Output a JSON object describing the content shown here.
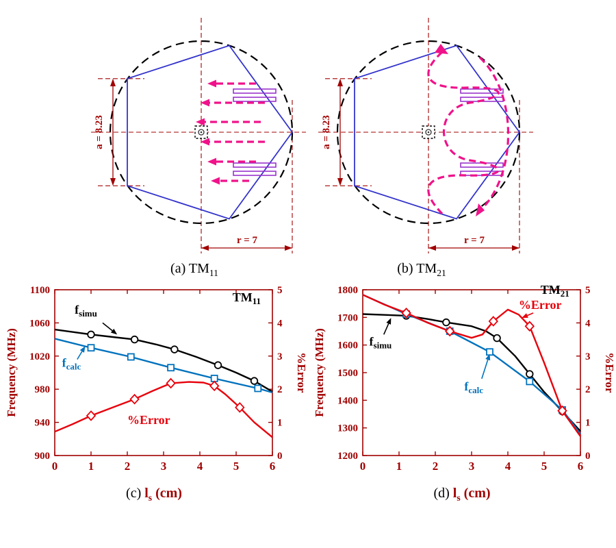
{
  "colors": {
    "axis": "#A00000",
    "patch": "#3333CC",
    "field": "#F0128A",
    "probe": "#9933CC",
    "circle": "#000000",
    "simu": "#000000",
    "calc": "#0072BD",
    "error": "#E8000B"
  },
  "diagrams": [
    {
      "caption_prefix": "(a)",
      "mode_label": "TM",
      "mode_sub": "11",
      "dim_a_label": "a = 8.23",
      "dim_r_label": "r = 7"
    },
    {
      "caption_prefix": "(b)",
      "mode_label": "TM",
      "mode_sub": "21",
      "dim_a_label": "a = 8.23",
      "dim_r_label": "r = 7"
    }
  ],
  "chart_data": [
    {
      "id": "c",
      "type": "line",
      "panel_caption": "(c)",
      "xlabel_main": "l",
      "xlabel_sub": "s",
      "xlabel_unit": "(cm)",
      "title_main": "TM",
      "title_sub": "11",
      "ylabel_left": "Frequency (MHz)",
      "ylabel_right": "%Error",
      "xlim": [
        0,
        6
      ],
      "ylim_left": [
        900,
        1100
      ],
      "ylim_right": [
        0,
        5
      ],
      "xticks": [
        0,
        1,
        2,
        3,
        4,
        5,
        6
      ],
      "yticks_left": [
        900,
        940,
        980,
        1020,
        1060,
        1100
      ],
      "yticks_right": [
        0,
        1,
        2,
        3,
        4,
        5
      ],
      "grid": false,
      "legend_position": "annotations",
      "series": [
        {
          "name_main": "f",
          "name_sub": "simu",
          "axis": "left",
          "color": "#000000",
          "marker": "circle",
          "x": [
            0,
            0.5,
            1,
            1.6,
            2.2,
            2.8,
            3.3,
            3.9,
            4.5,
            5,
            5.5,
            6
          ],
          "y": [
            1052,
            1049,
            1046,
            1043,
            1040,
            1034,
            1028,
            1019,
            1009,
            1000,
            990,
            977
          ],
          "marker_idx": [
            2,
            4,
            6,
            8,
            10
          ]
        },
        {
          "name_main": "f",
          "name_sub": "calc",
          "axis": "left",
          "color": "#0072BD",
          "marker": "square",
          "x": [
            0,
            1,
            2.1,
            3.2,
            4.4,
            5.6,
            6
          ],
          "y": [
            1041,
            1030,
            1019,
            1006,
            993,
            981,
            976
          ],
          "marker_idx": [
            1,
            2,
            3,
            4,
            5
          ]
        },
        {
          "name_main": "%Error",
          "name_sub": "",
          "axis": "right",
          "color": "#E8000B",
          "marker": "diamond",
          "x": [
            0,
            0.5,
            1,
            1.6,
            2.2,
            2.7,
            3.2,
            3.7,
            4.1,
            4.4,
            4.7,
            5.1,
            5.5,
            6
          ],
          "y": [
            0.72,
            0.95,
            1.2,
            1.45,
            1.7,
            1.95,
            2.18,
            2.22,
            2.2,
            2.1,
            1.85,
            1.45,
            1.0,
            0.55
          ],
          "marker_idx": [
            2,
            4,
            6,
            9,
            11
          ]
        }
      ],
      "annotations": [
        {
          "name": "f-simu-label",
          "text_main": "f",
          "text_sub": "simu",
          "color": "#000000",
          "x": 0.55,
          "y": 1071,
          "arrow_from": [
            1.32,
            1060
          ],
          "arrow_to": [
            1.72,
            1046
          ]
        },
        {
          "name": "f-calc-label",
          "text_main": "f",
          "text_sub": "calc",
          "color": "#0072BD",
          "x": 0.2,
          "y": 1007,
          "arrow_from": [
            0.62,
            1016
          ],
          "arrow_to": [
            0.84,
            1032
          ]
        },
        {
          "name": "error-label",
          "text_main": "%Error",
          "text_sub": "",
          "color": "#E8000B",
          "x": 2.0,
          "y": 938
        },
        {
          "name": "mode-title",
          "text_main": "TM",
          "text_sub": "11",
          "color": "#000000",
          "x": 4.9,
          "y": 1086
        }
      ]
    },
    {
      "id": "d",
      "type": "line",
      "panel_caption": "(d)",
      "xlabel_main": "l",
      "xlabel_sub": "s",
      "xlabel_unit": "(cm)",
      "title_main": "TM",
      "title_sub": "21",
      "ylabel_left": "Frequency (MHz)",
      "ylabel_right": "%Error",
      "xlim": [
        0,
        6
      ],
      "ylim_left": [
        1200,
        1800
      ],
      "ylim_right": [
        0,
        5
      ],
      "xticks": [
        0,
        1,
        2,
        3,
        4,
        5,
        6
      ],
      "yticks_left": [
        1200,
        1300,
        1400,
        1500,
        1600,
        1700,
        1800
      ],
      "yticks_right": [
        0,
        1,
        2,
        3,
        4,
        5
      ],
      "grid": false,
      "legend_position": "annotations",
      "series": [
        {
          "name_main": "f",
          "name_sub": "simu",
          "axis": "left",
          "color": "#000000",
          "marker": "circle",
          "x": [
            0,
            0.6,
            1.2,
            1.8,
            2.3,
            3,
            3.4,
            3.7,
            4.2,
            4.6,
            5,
            5.5,
            6
          ],
          "y": [
            1712,
            1709,
            1706,
            1694,
            1682,
            1668,
            1650,
            1625,
            1560,
            1495,
            1430,
            1360,
            1288
          ],
          "marker_idx": [
            2,
            4,
            7,
            9,
            11
          ]
        },
        {
          "name_main": "f",
          "name_sub": "calc",
          "axis": "left",
          "color": "#0072BD",
          "marker": "square",
          "x": [
            0,
            1.2,
            2.4,
            3.5,
            4.6,
            5.5,
            6
          ],
          "y": [
            1782,
            1712,
            1650,
            1575,
            1468,
            1365,
            1278
          ],
          "marker_idx": [
            1,
            2,
            3,
            4,
            5
          ]
        },
        {
          "name_main": "%Error",
          "name_sub": "",
          "axis": "right",
          "color": "#E8000B",
          "marker": "diamond",
          "x": [
            0,
            0.6,
            1.2,
            1.8,
            2.4,
            3,
            3.3,
            3.6,
            4,
            4.3,
            4.6,
            5,
            5.5,
            6
          ],
          "y": [
            4.85,
            4.55,
            4.3,
            4.0,
            3.75,
            3.55,
            3.65,
            4.05,
            4.4,
            4.25,
            3.9,
            2.8,
            1.35,
            0.58
          ],
          "marker_idx": [
            2,
            4,
            7,
            10,
            12
          ]
        }
      ],
      "annotations": [
        {
          "name": "f-simu-label",
          "text_main": "f",
          "text_sub": "simu",
          "color": "#000000",
          "x": 0.18,
          "y": 1598,
          "arrow_from": [
            0.58,
            1638
          ],
          "arrow_to": [
            0.78,
            1698
          ]
        },
        {
          "name": "f-calc-label",
          "text_main": "f",
          "text_sub": "calc",
          "color": "#0072BD",
          "x": 2.8,
          "y": 1436,
          "arrow_from": [
            3.28,
            1478
          ],
          "arrow_to": [
            3.5,
            1568
          ]
        },
        {
          "name": "error-label",
          "text_main": "%Error",
          "text_sub": "",
          "color": "#E8000B",
          "x": 4.3,
          "y": 1730,
          "arrow_from": [
            4.7,
            1716
          ],
          "arrow_to": [
            4.38,
            1698
          ]
        },
        {
          "name": "mode-title",
          "text_main": "TM",
          "text_sub": "21",
          "color": "#000000",
          "x": 4.9,
          "y": 1785
        }
      ]
    }
  ]
}
